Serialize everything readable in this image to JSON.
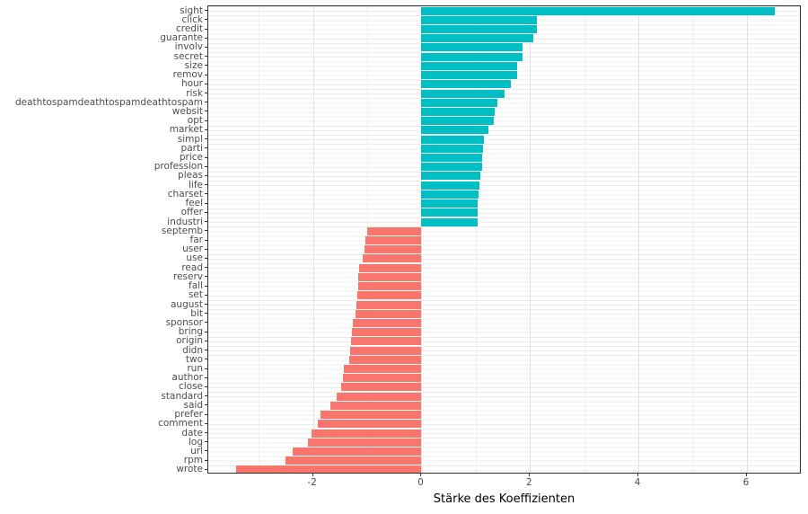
{
  "chart_data": {
    "type": "bar",
    "orientation": "horizontal",
    "title": "",
    "xlabel": "Stärke des Koeffizienten",
    "ylabel": "",
    "xlim": [
      -3.93,
      7.01
    ],
    "x_ticks": [
      -2,
      0,
      2,
      4,
      6
    ],
    "x_tick_labels": [
      "-2",
      "0",
      "2",
      "4",
      "6"
    ],
    "x_minor_gridlines": [
      -3,
      -1,
      1,
      3,
      5
    ],
    "grid": true,
    "legend": "none",
    "colors": {
      "positive_bar": "#00BFC4",
      "negative_bar": "#F8766D"
    },
    "categories": [
      "sight",
      "click",
      "credit",
      "guarante",
      "involv",
      "secret",
      "size",
      "remov",
      "hour",
      "risk",
      "deathtospamdeathtospamdeathtospam",
      "websit",
      "opt",
      "market",
      "simpl",
      "parti",
      "price",
      "profession",
      "pleas",
      "life",
      "charset",
      "feel",
      "offer",
      "industri",
      "septemb",
      "far",
      "user",
      "use",
      "read",
      "reserv",
      "fall",
      "set",
      "august",
      "bit",
      "sponsor",
      "bring",
      "origin",
      "didn",
      "two",
      "run",
      "author",
      "close",
      "standard",
      "said",
      "prefer",
      "comment",
      "date",
      "log",
      "url",
      "rpm",
      "wrote"
    ],
    "values": [
      6.52,
      2.13,
      2.12,
      2.06,
      1.87,
      1.86,
      1.77,
      1.76,
      1.65,
      1.53,
      1.4,
      1.35,
      1.33,
      1.24,
      1.15,
      1.13,
      1.11,
      1.11,
      1.09,
      1.07,
      1.05,
      1.04,
      1.03,
      1.03,
      -1.0,
      -1.04,
      -1.05,
      -1.08,
      -1.15,
      -1.16,
      -1.17,
      -1.19,
      -1.2,
      -1.21,
      -1.27,
      -1.29,
      -1.3,
      -1.32,
      -1.33,
      -1.43,
      -1.45,
      -1.48,
      -1.57,
      -1.68,
      -1.86,
      -1.91,
      -2.03,
      -2.09,
      -2.37,
      -2.5,
      -3.41
    ]
  }
}
